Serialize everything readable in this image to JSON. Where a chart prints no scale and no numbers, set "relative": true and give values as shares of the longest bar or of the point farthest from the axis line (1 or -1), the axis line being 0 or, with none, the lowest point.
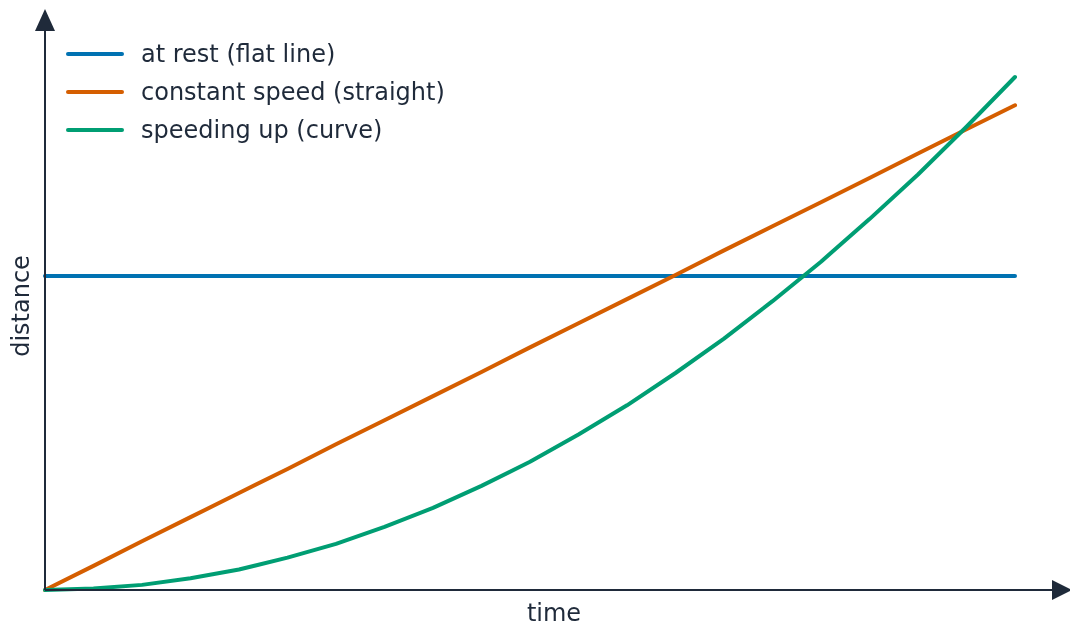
{
  "chart_data": {
    "type": "line",
    "relative": true,
    "xlabel": "time",
    "ylabel": "distance",
    "legend": "top left",
    "categories": [
      null,
      null,
      null,
      null,
      null,
      null,
      null,
      null,
      null,
      null,
      null,
      null,
      null,
      null,
      null,
      null,
      null,
      null,
      null,
      null,
      null
    ],
    "series": [
      {
        "name": "at rest (flat line)",
        "color": "#0072b2",
        "values": [
          0.612,
          0.612,
          0.612,
          0.612,
          0.612,
          0.612,
          0.612,
          0.612,
          0.612,
          0.612,
          0.612,
          0.612,
          0.612,
          0.612,
          0.612,
          0.612,
          0.612,
          0.612,
          0.612,
          0.612,
          0.612
        ]
      },
      {
        "name": "constant speed (straight)",
        "color": "#d55e00",
        "values": [
          0,
          0.047,
          0.095,
          0.142,
          0.189,
          0.236,
          0.284,
          0.331,
          0.378,
          0.425,
          0.473,
          0.52,
          0.567,
          0.614,
          0.662,
          0.709,
          0.756,
          0.803,
          0.851,
          0.898,
          0.945
        ]
      },
      {
        "name": "speeding up (curve)",
        "color": "#009e73",
        "values": [
          0,
          0.003,
          0.01,
          0.023,
          0.04,
          0.063,
          0.09,
          0.123,
          0.16,
          0.203,
          0.25,
          0.303,
          0.36,
          0.423,
          0.49,
          0.563,
          0.64,
          0.723,
          0.81,
          0.903,
          1
        ]
      }
    ]
  }
}
